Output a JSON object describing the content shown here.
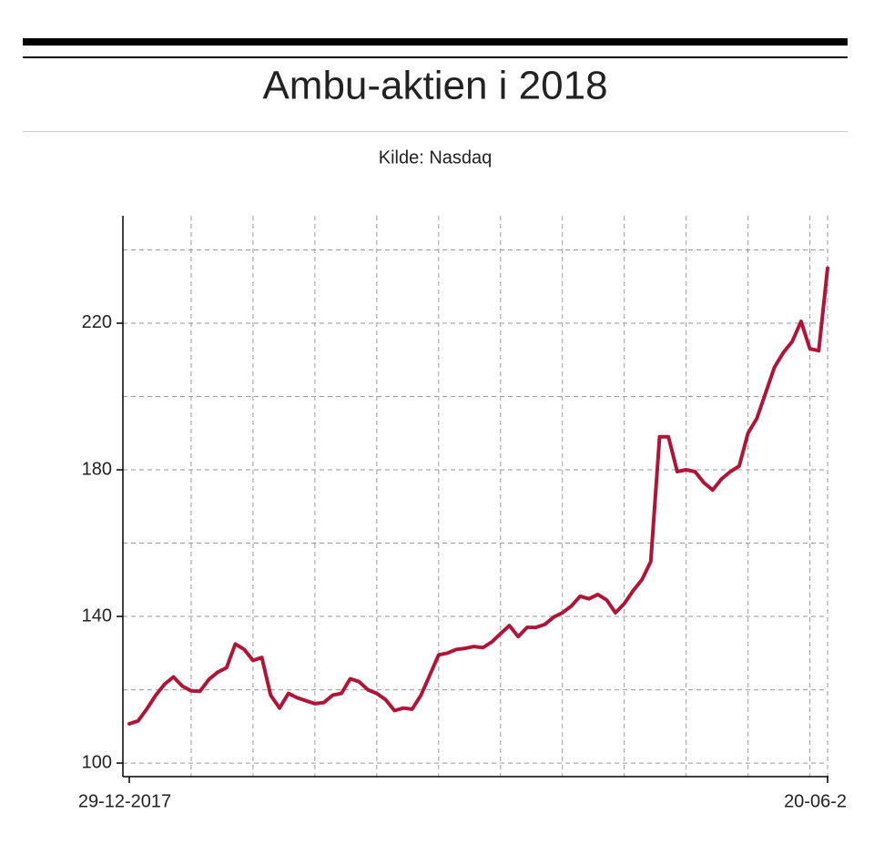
{
  "chart_data": {
    "type": "line",
    "title": "Ambu-aktien i 2018",
    "subtitle": "Kilde: Nasdaq",
    "categories": [
      "29-12-2017",
      null,
      null,
      null,
      null,
      null,
      null,
      null,
      null,
      null,
      null,
      null,
      null,
      null,
      null,
      null,
      null,
      null,
      null,
      null,
      null,
      null,
      null,
      null,
      null,
      null,
      null,
      null,
      null,
      null,
      null,
      null,
      null,
      null,
      null,
      null,
      null,
      null,
      null,
      null,
      null,
      null,
      null,
      null,
      null,
      null,
      null,
      null,
      null,
      null,
      null,
      null,
      null,
      null,
      null,
      null,
      null,
      null,
      null,
      null,
      null,
      null,
      null,
      null,
      null,
      null,
      null,
      null,
      null,
      null,
      null,
      null,
      null,
      null,
      null,
      null,
      null,
      null,
      null,
      "20-06-2"
    ],
    "values": [
      110.7,
      111.5,
      114.8,
      118.5,
      121.5,
      123.5,
      121,
      119.7,
      119.6,
      122.8,
      124.8,
      126,
      132.5,
      131,
      128,
      128.8,
      118.5,
      115,
      119,
      117.8,
      117,
      116.2,
      116.5,
      118.5,
      119,
      123,
      122.2,
      120,
      119,
      117.3,
      114.3,
      115,
      114.7,
      118.5,
      124,
      129.5,
      130,
      131,
      131.3,
      131.8,
      131.5,
      133,
      135.3,
      137.5,
      134.5,
      137,
      137,
      137.8,
      139.8,
      141,
      142.8,
      145.5,
      144.8,
      146,
      144.5,
      141,
      143.5,
      147,
      150,
      155,
      189,
      189,
      179.5,
      180,
      179.5,
      176.5,
      174.5,
      177.5,
      179.5,
      181,
      190,
      194,
      201,
      208,
      212,
      215,
      220.5,
      213,
      212.5,
      235
    ],
    "color": "#b01538",
    "ylim": [
      96.3,
      249.3
    ],
    "yticks": [
      100,
      140,
      180,
      220
    ],
    "y_minor_ticks": [
      120,
      160,
      200,
      240
    ],
    "grid": true
  }
}
